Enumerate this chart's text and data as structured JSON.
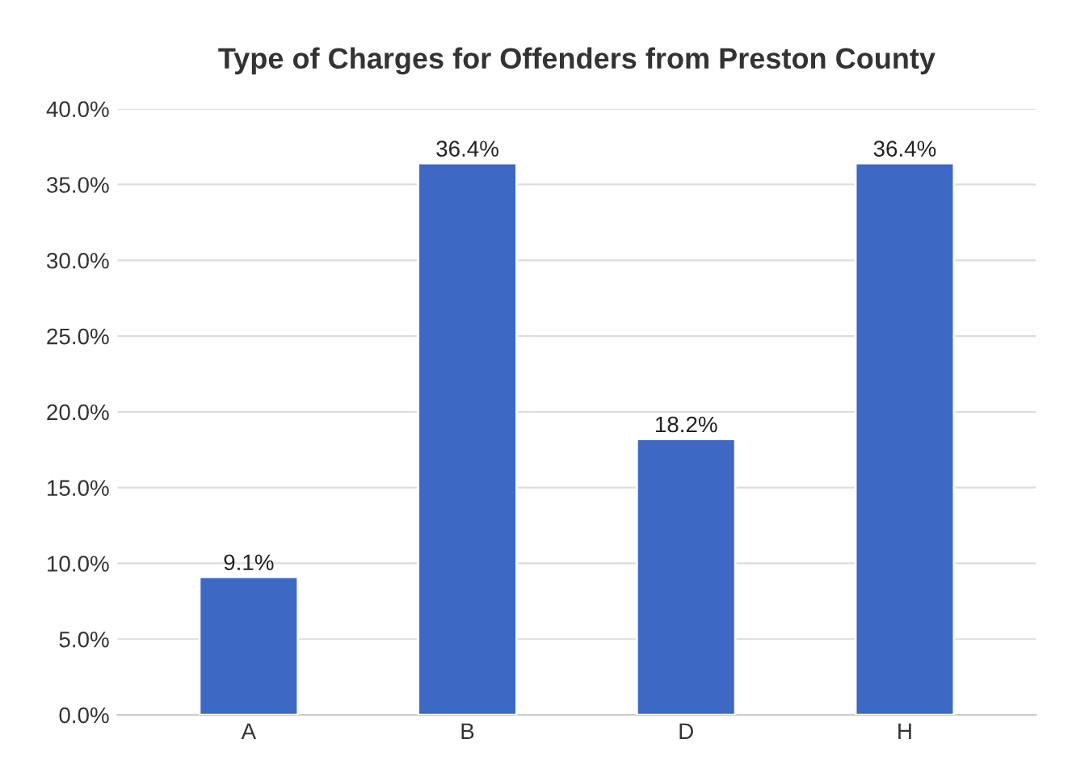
{
  "chart_data": {
    "type": "bar",
    "title": "Type of Charges for Offenders from Preston County",
    "categories": [
      "A",
      "B",
      "D",
      "H"
    ],
    "values": [
      9.1,
      36.4,
      18.2,
      36.4
    ],
    "value_labels": [
      "9.1%",
      "36.4%",
      "18.2%",
      "36.4%"
    ],
    "color": "#3d68c4",
    "ylim": [
      0,
      40
    ],
    "yticks": [
      {
        "value": 0,
        "label": "0.0%"
      },
      {
        "value": 5,
        "label": "5.0%"
      },
      {
        "value": 10,
        "label": "10.0%"
      },
      {
        "value": 15,
        "label": "15.0%"
      },
      {
        "value": 20,
        "label": "20.0%"
      },
      {
        "value": 25,
        "label": "25.0%"
      },
      {
        "value": 30,
        "label": "30.0%"
      },
      {
        "value": 35,
        "label": "35.0%"
      },
      {
        "value": 40,
        "label": "40.0%"
      }
    ],
    "grid": "y"
  }
}
